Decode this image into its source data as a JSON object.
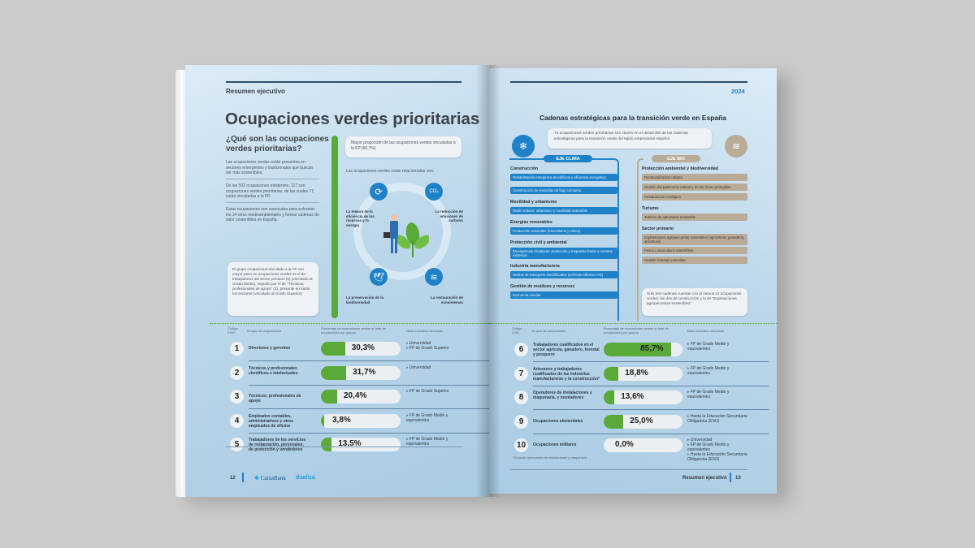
{
  "left_page": {
    "section": "Resumen ejecutivo",
    "title": "Ocupaciones verdes prioritarias",
    "subtitle": "¿Qué son las ocupaciones verdes prioritarias?",
    "paragraphs": [
      "Las ocupaciones verdes están presentes en sectores emergentes y tradicionales que buscan ser más sostenibles.",
      "De las 502 ocupaciones existentes, 117 son ocupaciones verdes prioritarias, de las cuales 71 están vinculadas a la FP.",
      "Estas ocupaciones son esenciales para enfrentar los 14 retos medioambientales y formar cadenas de valor sostenibles en España."
    ],
    "callout_top": "Mayor proporción de las ocupaciones verdes vinculadas a la FP (60,7%)",
    "diagram_intro": "Las ocupaciones verdes están relacionadas con:",
    "diagram_items": [
      {
        "label": "La mejora de la eficiencia de los recursos y la energía",
        "icon": "energy-cycle-icon"
      },
      {
        "label": "La reducción de emisiones de carbono",
        "icon": "co2-cloud-icon"
      },
      {
        "label": "La preservación de la biodiversidad",
        "icon": "bird-icon"
      },
      {
        "label": "La restauración de ecosistemas",
        "icon": "landscape-icon"
      }
    ],
    "callout_bottom": "El grupo ocupacional vinculado a la FP con mayor peso en ocupaciones verdes es el de trabajadores del sector primario (6) (vinculado al Grado Medio), seguido por el de \"Técnicos; profesionales de apoyo\" (3), presente en todos los sectores (vinculado al Grado Superior)",
    "page_number": "12",
    "logos": [
      "CaixaBank",
      "dualiza"
    ]
  },
  "table_headers": {
    "code": "Código CNO",
    "group": "Grupos de ocupaciones",
    "pct": "Porcentaje de ocupaciones verdes s/ total de ocupaciones por grupos",
    "edu": "Nivel educativo vinculado"
  },
  "rows_left": [
    {
      "code": "1",
      "group": "Directores y gerentes",
      "pct": 30.3,
      "pct_label": "30,3%",
      "edu": [
        "Universidad",
        "FP de Grado Superior"
      ]
    },
    {
      "code": "2",
      "group": "Técnicos y profesionales científicos e intelectuales",
      "pct": 31.7,
      "pct_label": "31,7%",
      "edu": [
        "Universidad"
      ]
    },
    {
      "code": "3",
      "group": "Técnicos; profesionales de apoyo",
      "pct": 20.4,
      "pct_label": "20,4%",
      "edu": [
        "FP de Grado Superior"
      ]
    },
    {
      "code": "4",
      "group": "Empleados contables, administrativos y otros empleados de oficina",
      "pct": 3.8,
      "pct_label": "3,8%",
      "edu": [
        "FP de Grado Medio y equivalentes"
      ]
    },
    {
      "code": "5",
      "group": "Trabajadores de los servicios de restauración, personales, de protección y vendedores",
      "pct": 13.5,
      "pct_label": "13,5%",
      "edu": [
        "FP de Grado Medio y equivalentes"
      ]
    }
  ],
  "right_page": {
    "year": "2024",
    "title": "Cadenas estratégicas para la transición verde en España",
    "callout_top": "71 ocupaciones verdes prioritarias son claves en el desarrollo de las cadenas estratégicas para la transición verde del tejido empresarial español",
    "clima": {
      "label": "EJE CLIMA",
      "color": "#1f82c9",
      "groups": [
        {
          "head": "Construcción",
          "items": [
            "Rehabilitación energética de edificios y eficiencia energética",
            "Construcción de viviendas de bajo consumo"
          ]
        },
        {
          "head": "Movilidad y urbanismo",
          "items": [
            "Medio urbano: urbanismo y movilidad sostenible"
          ]
        },
        {
          "head": "Energías renovables",
          "items": [
            "Producción renovable (fotovoltaica y eólica)"
          ]
        },
        {
          "head": "Protección civil y ambiental",
          "items": [
            "Emergencias climáticas: protección y respuesta frente a eventos extremos"
          ]
        },
        {
          "head": "Industria manufacturera",
          "items": [
            "Medios de transporte electrificados (vehículo eléctrico-VE)"
          ]
        },
        {
          "head": "Gestión de residuos y recursos",
          "items": [
            "Economía circular"
          ]
        }
      ]
    },
    "bio": {
      "label": "EJE BIO",
      "color": "#b9ab98",
      "groups": [
        {
          "head": "Protección ambiental y biodiversidad",
          "items": [
            "Renaturalización urbana",
            "Gestión del patrimonio natural y de las áreas protegidas",
            "Restauración ecológica"
          ]
        },
        {
          "head": "Turismo",
          "items": [
            "Turismo de naturaleza sostenible"
          ]
        },
        {
          "head": "Sector primario",
          "items": [
            "Explotaciones agropecuarias sostenibles (agricultura, ganadería, apicultura)",
            "Pesca y acuicultura sostenibles",
            "Gestión forestal sostenible"
          ]
        }
      ]
    },
    "callout_bio": "Solo tres cadenas cuentan con al menos 24 ocupaciones verdes: las dos de construcción y la de \"Explotaciones agropecuarias sostenibles\"",
    "footnote": "* Excepto operadores de instalaciones y maquinaria.",
    "footer_section": "Resumen ejecutivo",
    "page_number": "13"
  },
  "rows_right": [
    {
      "code": "6",
      "group": "Trabajadores cualificados en el sector agrícola, ganadero, forestal y pesquero",
      "pct": 85.7,
      "pct_label": "85,7%",
      "edu": [
        "FP de Grado Medio y equivalentes"
      ]
    },
    {
      "code": "7",
      "group": "Artesanos y trabajadores cualificados de las industrias manufactureras y la construcción*",
      "pct": 18.8,
      "pct_label": "18,8%",
      "edu": [
        "FP de Grado Medio y equivalentes"
      ]
    },
    {
      "code": "8",
      "group": "Operadores de instalaciones y maquinaria, y montadores",
      "pct": 13.6,
      "pct_label": "13,6%",
      "edu": [
        "FP de Grado Medio y equivalentes"
      ]
    },
    {
      "code": "9",
      "group": "Ocupaciones elementales",
      "pct": 25.0,
      "pct_label": "25,0%",
      "edu": [
        "Hasta la Educación Secundaria Obligatoria (ESO)"
      ]
    },
    {
      "code": "10",
      "group": "Ocupaciones militares",
      "pct": 0.0,
      "pct_label": "0,0%",
      "edu": [
        "Universidad",
        "FP de Grado Medio y equivalentes",
        "Hasta la Educación Secundaria Obligatoria (ESO)"
      ]
    }
  ],
  "colors": {
    "accent_blue": "#1f82c9",
    "bar_green": "#5aaa3a",
    "bio_tan": "#b9ab98",
    "background": "#cbcbcb"
  }
}
